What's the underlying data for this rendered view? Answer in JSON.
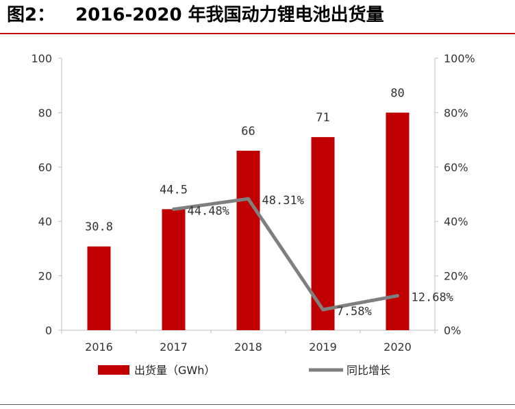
{
  "header": {
    "figure_label": "图2：",
    "title": "2016-2020 年我国动力锂电池出货量"
  },
  "colors": {
    "bar": "#c00000",
    "line": "#7f7f7f",
    "axis": "#bfbfbf",
    "rule": "#c00000"
  },
  "chart_data": {
    "type": "bar",
    "title": "2016-2020 年我国动力锂电池出货量",
    "categories": [
      "2016",
      "2017",
      "2018",
      "2019",
      "2020"
    ],
    "series": [
      {
        "name": "出货量（GWh）",
        "type": "bar",
        "axis": "left",
        "values": [
          30.8,
          44.5,
          66,
          71,
          80
        ],
        "labels": [
          "30.8",
          "44.5",
          "66",
          "71",
          "80"
        ]
      },
      {
        "name": "同比增长",
        "type": "line",
        "axis": "right",
        "values": [
          null,
          44.48,
          48.31,
          7.58,
          12.68
        ],
        "labels": [
          "",
          "44.48%",
          "48.31%",
          "7.58%",
          "12.68%"
        ]
      }
    ],
    "y_left": {
      "min": 0,
      "max": 100,
      "ticks": [
        "0",
        "20",
        "40",
        "60",
        "80",
        "100"
      ]
    },
    "y_right": {
      "min": 0,
      "max": 100,
      "ticks": [
        "0%",
        "20%",
        "40%",
        "60%",
        "80%",
        "100%"
      ]
    },
    "legend_position": "bottom",
    "grid": false
  }
}
